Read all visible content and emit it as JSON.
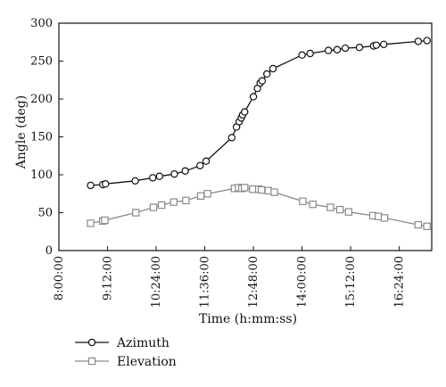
{
  "chart_data": {
    "type": "line",
    "xlabel": "Time (h:mm:ss)",
    "ylabel": "Angle (deg)",
    "xlim": [
      "8:00:00",
      "17:12:00"
    ],
    "ylim": [
      0,
      300
    ],
    "x_ticks": [
      "8:00:00",
      "9:12:00",
      "10:24:00",
      "11:36:00",
      "12:48:00",
      "14:00:00",
      "15:12:00",
      "16:24:00"
    ],
    "y_ticks": [
      0,
      50,
      100,
      150,
      200,
      250,
      300
    ],
    "grid": false,
    "legend_position": "bottom-left",
    "series": [
      {
        "name": "Azimuth",
        "marker": "circle",
        "color": "#111111",
        "points": [
          [
            "8:47:00",
            86
          ],
          [
            "9:05:00",
            87
          ],
          [
            "9:09:00",
            88
          ],
          [
            "9:53:00",
            92
          ],
          [
            "10:19:00",
            96
          ],
          [
            "10:29:00",
            98
          ],
          [
            "10:51:00",
            101
          ],
          [
            "11:07:00",
            105
          ],
          [
            "11:29:00",
            112
          ],
          [
            "11:38:00",
            118
          ],
          [
            "12:16:00",
            149
          ],
          [
            "12:23:00",
            163
          ],
          [
            "12:27:00",
            170
          ],
          [
            "12:30:00",
            175
          ],
          [
            "12:32:00",
            179
          ],
          [
            "12:35:00",
            183
          ],
          [
            "12:48:00",
            203
          ],
          [
            "12:54:00",
            214
          ],
          [
            "12:58:00",
            221
          ],
          [
            "13:01:00",
            224
          ],
          [
            "13:08:00",
            233
          ],
          [
            "13:17:00",
            240
          ],
          [
            "14:00:00",
            258
          ],
          [
            "14:12:00",
            260
          ],
          [
            "14:39:00",
            264
          ],
          [
            "14:52:00",
            265
          ],
          [
            "15:04:00",
            267
          ],
          [
            "15:25:00",
            268
          ],
          [
            "15:46:00",
            270
          ],
          [
            "15:50:00",
            271
          ],
          [
            "16:01:00",
            272
          ],
          [
            "16:52:00",
            276
          ],
          [
            "17:05:00",
            277
          ]
        ]
      },
      {
        "name": "Elevation",
        "marker": "square",
        "color": "#8a8a8a",
        "points": [
          [
            "8:47:00",
            36
          ],
          [
            "9:05:00",
            39
          ],
          [
            "9:08:00",
            40
          ],
          [
            "9:54:00",
            50
          ],
          [
            "10:20:00",
            57
          ],
          [
            "10:32:00",
            60
          ],
          [
            "10:50:00",
            64
          ],
          [
            "11:08:00",
            66
          ],
          [
            "11:30:00",
            72
          ],
          [
            "11:40:00",
            75
          ],
          [
            "12:20:00",
            82
          ],
          [
            "12:26:00",
            83
          ],
          [
            "12:31:00",
            82
          ],
          [
            "12:35:00",
            83
          ],
          [
            "12:47:00",
            81
          ],
          [
            "12:56:00",
            81
          ],
          [
            "13:00:00",
            80
          ],
          [
            "13:10:00",
            79
          ],
          [
            "13:19:00",
            77
          ],
          [
            "14:01:00",
            65
          ],
          [
            "14:16:00",
            61
          ],
          [
            "14:42:00",
            57
          ],
          [
            "14:56:00",
            54
          ],
          [
            "15:09:00",
            51
          ],
          [
            "15:45:00",
            46
          ],
          [
            "15:53:00",
            45
          ],
          [
            "16:02:00",
            43
          ],
          [
            "16:52:00",
            34
          ],
          [
            "17:05:00",
            32
          ]
        ]
      }
    ]
  }
}
